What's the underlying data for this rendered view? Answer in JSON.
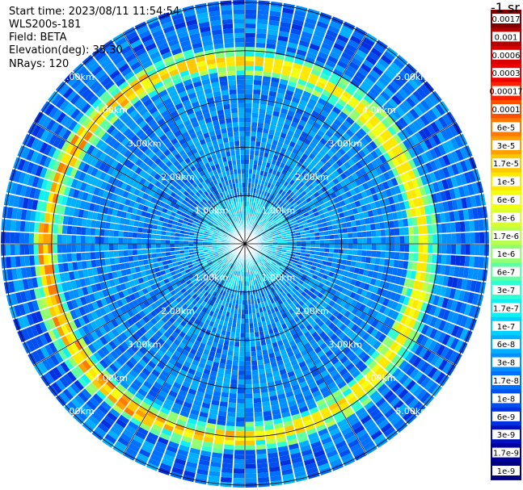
{
  "header": {
    "start_time": "Start time: 2023/08/11 11:54:54",
    "device": "WLS200s-181",
    "field": "Field: BETA",
    "elevation": "Elevation(deg): 35.30",
    "nrays": "NRays: 120"
  },
  "colorbar": {
    "title": "-1 sr",
    "labels": [
      "0.0017",
      "0.001",
      "0.0006",
      "0.0003",
      "0.00017",
      "0.0001",
      "6e-5",
      "3e-5",
      "1.7e-5",
      "1e-5",
      "6e-6",
      "3e-6",
      "1.7e-6",
      "1e-6",
      "6e-7",
      "3e-7",
      "1.7e-7",
      "1e-7",
      "6e-8",
      "3e-8",
      "1.7e-8",
      "1e-8",
      "6e-9",
      "3e-9",
      "1.7e-9",
      "1e-9"
    ],
    "colors": [
      "#800000",
      "#b00000",
      "#d80000",
      "#f00000",
      "#ff2000",
      "#ff5000",
      "#ff7a00",
      "#ffa000",
      "#ffc800",
      "#ffe800",
      "#f4ff10",
      "#d8ff30",
      "#b8ff50",
      "#90ff70",
      "#60ffa0",
      "#30ffd0",
      "#10f0f0",
      "#00d0ff",
      "#00b0ff",
      "#0090ff",
      "#0070ff",
      "#0050f0",
      "#0030e0",
      "#0010c0",
      "#0000a0",
      "#000080"
    ]
  },
  "chart_data": {
    "type": "heatmap",
    "projection": "polar",
    "nrays": 120,
    "field": "BETA",
    "range_rings_km": [
      1,
      2,
      3,
      4,
      5
    ],
    "range_labels": [
      "1.00km",
      "2.00km",
      "3.00km",
      "4.00km",
      "5.00km"
    ],
    "max_range_km": 5.05,
    "spokes_deg": [
      0,
      30,
      60,
      90,
      120,
      150,
      180,
      210,
      240,
      270,
      300,
      330
    ],
    "range_gates": 52,
    "feature": {
      "description_values": {
        "ring_center_km": 3.9,
        "ring_width_km": 0.18,
        "ring_peak": "1.7e-5",
        "background_low": "1e-8",
        "background_high": "3e-7"
      }
    }
  }
}
